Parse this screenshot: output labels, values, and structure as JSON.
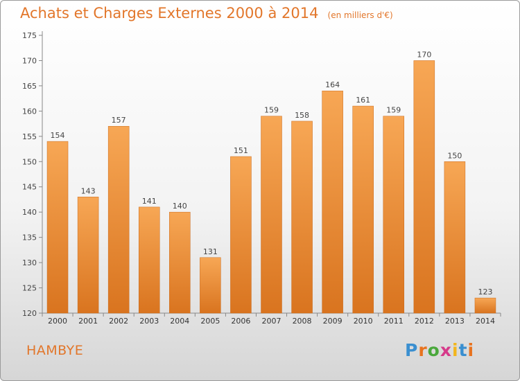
{
  "title": "Achats et Charges Externes 2000 à 2014",
  "unit_note": "(en milliers d'€)",
  "commune": "HAMBYE",
  "logo": {
    "text": "Proxiti",
    "letter_colors": [
      "#3a8fd0",
      "#e8731f",
      "#4aa83c",
      "#d63a8a",
      "#f2b51c",
      "#3a8fd0",
      "#e8731f"
    ]
  },
  "colors": {
    "bar_light": "#f7a755",
    "bar_dark": "#d9741f",
    "text_accent": "#e2762a"
  },
  "chart_data": {
    "type": "bar",
    "title": "Achats et Charges Externes 2000 à 2014",
    "categories": [
      "2000",
      "2001",
      "2002",
      "2003",
      "2004",
      "2005",
      "2006",
      "2007",
      "2008",
      "2009",
      "2010",
      "2011",
      "2012",
      "2013",
      "2014"
    ],
    "values": [
      154,
      143,
      157,
      141,
      140,
      131,
      151,
      159,
      158,
      164,
      161,
      159,
      170,
      150,
      123
    ],
    "ylim": [
      120,
      175
    ],
    "yticks": [
      120,
      125,
      130,
      135,
      140,
      145,
      150,
      155,
      160,
      165,
      170,
      175
    ],
    "grid": false,
    "legend": "none"
  }
}
